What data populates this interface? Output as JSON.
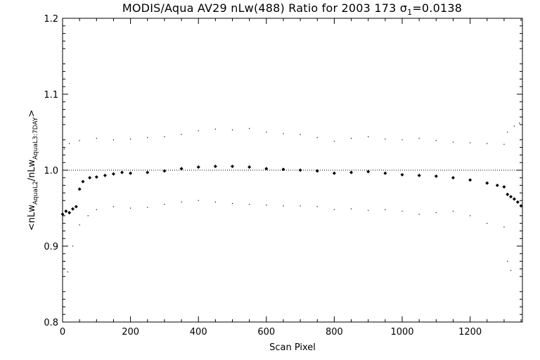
{
  "chart_data": {
    "type": "scatter",
    "title": {
      "prefix": "MODIS/Aqua AV29 nLw(488) Ratio for 2003 173 ",
      "sigma_symbol": "σ",
      "sigma_subscript": "1",
      "suffix": "=0.0138"
    },
    "xlabel": "Scan Pixel",
    "ylabel": {
      "open": "<",
      "num": "nLw",
      "num_sub": "AquaL2",
      "sep": "/",
      "den": "nLw",
      "den_sub": "AquaL3:7DAY",
      "close": ">"
    },
    "xlim": [
      0,
      1354
    ],
    "ylim": [
      0.8,
      1.2
    ],
    "x_ticks": [
      0,
      200,
      400,
      600,
      800,
      1000,
      1200
    ],
    "x_tick_labels": [
      "0",
      "200",
      "400",
      "600",
      "800",
      "1000",
      "1200"
    ],
    "y_ticks": [
      0.8,
      0.9,
      1.0,
      1.1,
      1.2
    ],
    "y_tick_labels": [
      "0.8",
      "0.9",
      "1.0",
      "1.1",
      "1.2"
    ],
    "reference_line": 1.0,
    "series": [
      {
        "style": "diamond",
        "points": [
          [
            0,
            0.942
          ],
          [
            10,
            0.946
          ],
          [
            20,
            0.944
          ],
          [
            30,
            0.949
          ],
          [
            40,
            0.952
          ],
          [
            50,
            0.975
          ],
          [
            60,
            0.985
          ],
          [
            80,
            0.99
          ],
          [
            100,
            0.991
          ],
          [
            125,
            0.993
          ],
          [
            150,
            0.995
          ],
          [
            175,
            0.997
          ],
          [
            200,
            0.996
          ],
          [
            250,
            0.997
          ],
          [
            300,
            0.999
          ],
          [
            350,
            1.002
          ],
          [
            400,
            1.004
          ],
          [
            450,
            1.005
          ],
          [
            500,
            1.005
          ],
          [
            550,
            1.004
          ],
          [
            600,
            1.002
          ],
          [
            650,
            1.001
          ],
          [
            700,
            1.0
          ],
          [
            750,
            0.999
          ],
          [
            800,
            0.996
          ],
          [
            850,
            0.997
          ],
          [
            900,
            0.998
          ],
          [
            950,
            0.996
          ],
          [
            1000,
            0.994
          ],
          [
            1050,
            0.993
          ],
          [
            1100,
            0.992
          ],
          [
            1150,
            0.99
          ],
          [
            1200,
            0.987
          ],
          [
            1250,
            0.983
          ],
          [
            1280,
            0.98
          ],
          [
            1300,
            0.978
          ],
          [
            1310,
            0.968
          ],
          [
            1320,
            0.965
          ],
          [
            1330,
            0.962
          ],
          [
            1340,
            0.958
          ],
          [
            1350,
            0.953
          ]
        ]
      },
      {
        "style": "dot",
        "points": [
          [
            5,
            1.028
          ],
          [
            20,
            1.035
          ],
          [
            50,
            1.039
          ],
          [
            100,
            1.042
          ],
          [
            150,
            1.04
          ],
          [
            200,
            1.041
          ],
          [
            250,
            1.043
          ],
          [
            300,
            1.044
          ],
          [
            350,
            1.047
          ],
          [
            400,
            1.052
          ],
          [
            450,
            1.054
          ],
          [
            500,
            1.053
          ],
          [
            550,
            1.055
          ],
          [
            600,
            1.05
          ],
          [
            650,
            1.048
          ],
          [
            700,
            1.047
          ],
          [
            750,
            1.043
          ],
          [
            800,
            1.038
          ],
          [
            850,
            1.042
          ],
          [
            900,
            1.044
          ],
          [
            950,
            1.041
          ],
          [
            1000,
            1.04
          ],
          [
            1050,
            1.042
          ],
          [
            1100,
            1.039
          ],
          [
            1150,
            1.037
          ],
          [
            1200,
            1.036
          ],
          [
            1250,
            1.035
          ],
          [
            1300,
            1.034
          ],
          [
            1310,
            1.05
          ],
          [
            1330,
            1.058
          ],
          [
            1345,
            1.062
          ]
        ]
      },
      {
        "style": "dot",
        "points": [
          [
            5,
            0.88
          ],
          [
            15,
            0.866
          ],
          [
            30,
            0.9
          ],
          [
            50,
            0.928
          ],
          [
            75,
            0.94
          ],
          [
            100,
            0.948
          ],
          [
            150,
            0.952
          ],
          [
            200,
            0.95
          ],
          [
            250,
            0.951
          ],
          [
            300,
            0.955
          ],
          [
            350,
            0.958
          ],
          [
            400,
            0.96
          ],
          [
            450,
            0.958
          ],
          [
            500,
            0.956
          ],
          [
            550,
            0.955
          ],
          [
            600,
            0.954
          ],
          [
            650,
            0.953
          ],
          [
            700,
            0.953
          ],
          [
            750,
            0.952
          ],
          [
            800,
            0.948
          ],
          [
            850,
            0.949
          ],
          [
            900,
            0.947
          ],
          [
            950,
            0.948
          ],
          [
            1000,
            0.946
          ],
          [
            1050,
            0.942
          ],
          [
            1100,
            0.944
          ],
          [
            1150,
            0.946
          ],
          [
            1200,
            0.94
          ],
          [
            1250,
            0.93
          ],
          [
            1300,
            0.925
          ],
          [
            1310,
            0.88
          ],
          [
            1320,
            0.868
          ]
        ]
      }
    ]
  }
}
